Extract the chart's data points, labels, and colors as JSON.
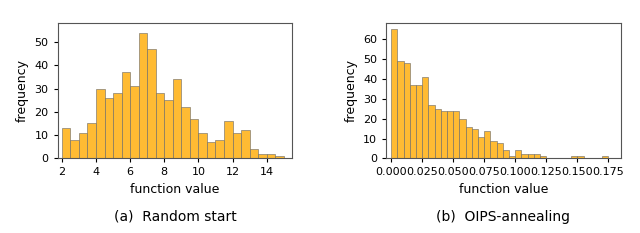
{
  "left_hist": {
    "bar_lefts": [
      2.0,
      2.5,
      3.0,
      3.5,
      4.0,
      4.5,
      5.0,
      5.5,
      6.0,
      6.5,
      7.0,
      7.5,
      8.0,
      8.5,
      9.0,
      9.5,
      10.0,
      10.5,
      11.0,
      11.5,
      12.0,
      12.5,
      13.0,
      13.5,
      14.0,
      14.5
    ],
    "bar_heights": [
      13,
      8,
      11,
      15,
      30,
      26,
      28,
      37,
      31,
      54,
      47,
      28,
      25,
      34,
      22,
      17,
      11,
      7,
      8,
      16,
      11,
      12,
      4,
      2,
      2,
      1
    ],
    "bin_width": 0.5,
    "xlim": [
      1.75,
      15.5
    ],
    "ylim": [
      0,
      58
    ],
    "xticks": [
      2,
      4,
      6,
      8,
      10,
      12,
      14
    ],
    "yticks": [
      0,
      10,
      20,
      30,
      40,
      50
    ],
    "xlabel": "function value",
    "ylabel": "frequency",
    "caption": "(a)  Random start"
  },
  "right_hist": {
    "bar_lefts": [
      0.0,
      0.005,
      0.01,
      0.015,
      0.02,
      0.025,
      0.03,
      0.035,
      0.04,
      0.045,
      0.05,
      0.055,
      0.06,
      0.065,
      0.07,
      0.075,
      0.08,
      0.085,
      0.09,
      0.095,
      0.1,
      0.105,
      0.11,
      0.115,
      0.12,
      0.125,
      0.13,
      0.135,
      0.14,
      0.145,
      0.15,
      0.155,
      0.16,
      0.165,
      0.17,
      0.175
    ],
    "bar_heights": [
      65,
      49,
      48,
      37,
      37,
      41,
      27,
      25,
      24,
      24,
      24,
      20,
      16,
      15,
      11,
      14,
      9,
      8,
      4,
      1,
      4,
      2,
      2,
      2,
      1,
      0,
      0,
      0,
      0,
      1,
      1,
      0,
      0,
      0,
      1,
      0
    ],
    "bin_width": 0.005,
    "xlim": [
      -0.004,
      0.185
    ],
    "ylim": [
      0,
      68
    ],
    "xticks": [
      0.0,
      0.025,
      0.05,
      0.075,
      0.1,
      0.125,
      0.15,
      0.175
    ],
    "xtick_labels": [
      "0.000",
      "0.025",
      "0.050",
      "0.075",
      "0.100",
      "0.125",
      "0.150",
      "0.175"
    ],
    "yticks": [
      0,
      10,
      20,
      30,
      40,
      50,
      60
    ],
    "xlabel": "function value",
    "ylabel": "frequency",
    "caption": "(b)  OIPS-annealing"
  },
  "bar_color": "#FFBB33",
  "bar_edge_color": "#666666",
  "bar_edge_width": 0.4,
  "caption_fontsize": 10,
  "axis_label_fontsize": 9,
  "tick_fontsize": 8
}
